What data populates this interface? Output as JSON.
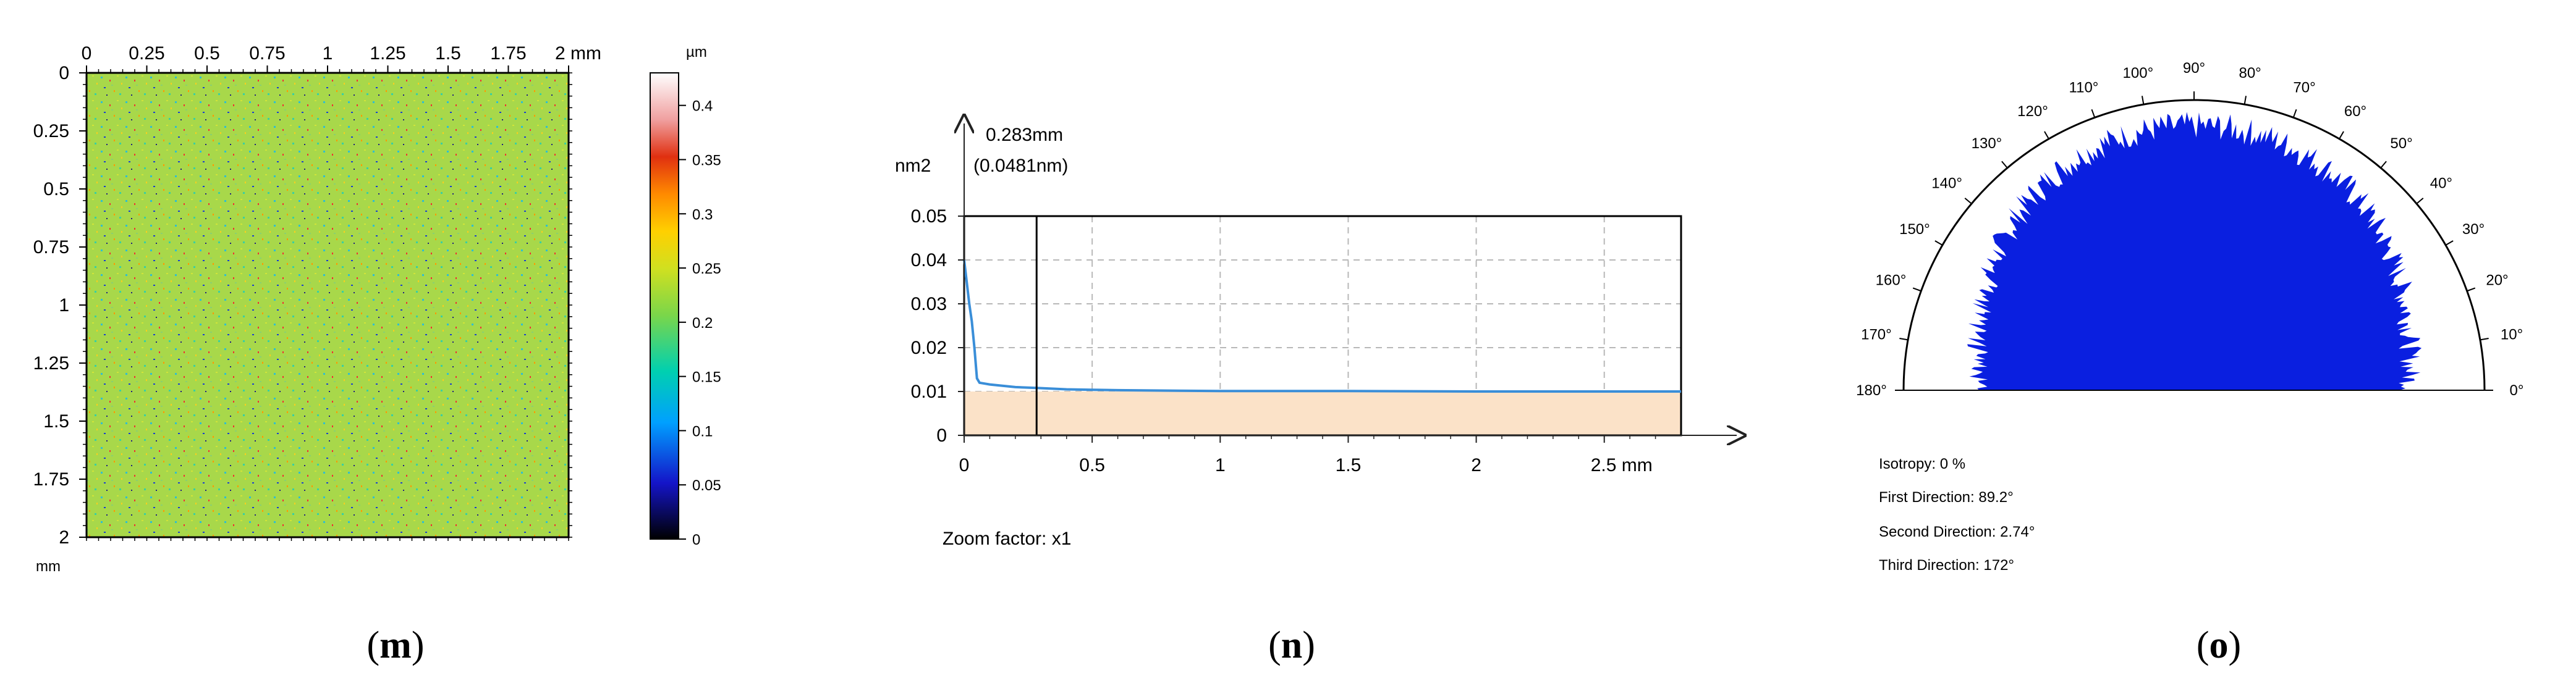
{
  "chart_data": [
    {
      "type": "heatmap",
      "id": "m",
      "x_ticks": [
        "0",
        "0.25",
        "0.5",
        "0.75",
        "1",
        "1.25",
        "1.5",
        "1.75",
        "2 mm"
      ],
      "y_ticks": [
        "0",
        "0.25",
        "0.5",
        "0.75",
        "1",
        "1.25",
        "1.5",
        "1.75",
        "2"
      ],
      "y_unit": "mm",
      "xlim": [
        0,
        2
      ],
      "ylim": [
        0,
        2
      ],
      "colorbar_unit": "µm",
      "colorbar_ticks": [
        "0.4",
        "0.35",
        "0.3",
        "0.25",
        "0.2",
        "0.15",
        "0.1",
        "0.05",
        "0"
      ],
      "colorbar_range": [
        0,
        0.43
      ],
      "dominant_value_um": 0.2
    },
    {
      "type": "line",
      "id": "n",
      "ylabel": "nm2",
      "xlabel": "mm",
      "x_ticks": [
        "0",
        "0.5",
        "1",
        "1.5",
        "2",
        "2.5 mm"
      ],
      "y_ticks": [
        "0.05",
        "0.04",
        "0.03",
        "0.02",
        "0.01",
        "0"
      ],
      "xlim": [
        0,
        2.8
      ],
      "ylim": [
        0,
        0.05
      ],
      "grid": true,
      "marker_label_1": "0.283mm",
      "marker_label_2": "(0.0481nm)",
      "marker_x": 0.283,
      "zoom_text": "Zoom factor: x1",
      "series": [
        {
          "x": [
            0,
            0.02,
            0.03,
            0.04,
            0.05,
            0.06,
            0.08,
            0.1,
            0.15,
            0.2,
            0.283,
            0.4,
            0.5,
            0.6,
            0.8,
            1.0,
            1.5,
            2.0,
            2.5,
            2.8
          ],
          "y": [
            0.04,
            0.03,
            0.026,
            0.02,
            0.013,
            0.012,
            0.0118,
            0.0116,
            0.0113,
            0.011,
            0.0108,
            0.0105,
            0.0104,
            0.0103,
            0.0102,
            0.0101,
            0.0101,
            0.01,
            0.01,
            0.01
          ]
        }
      ]
    },
    {
      "type": "polar",
      "id": "o",
      "angle_labels": [
        "0°",
        "10°",
        "20°",
        "30°",
        "40°",
        "50°",
        "60°",
        "70°",
        "80°",
        "90°",
        "100°",
        "110°",
        "120°",
        "130°",
        "140°",
        "150°",
        "160°",
        "170°",
        "180°"
      ],
      "fill_color": "#0a1fe0",
      "radius_fraction_median": 0.9,
      "isotropy": "Isotropy: 0 %",
      "first_direction": "First Direction: 89.2°",
      "second_direction": "Second Direction: 2.74°",
      "third_direction": "Third Direction: 172°"
    }
  ],
  "captions": {
    "m": "m",
    "n": "n",
    "o": "o"
  }
}
